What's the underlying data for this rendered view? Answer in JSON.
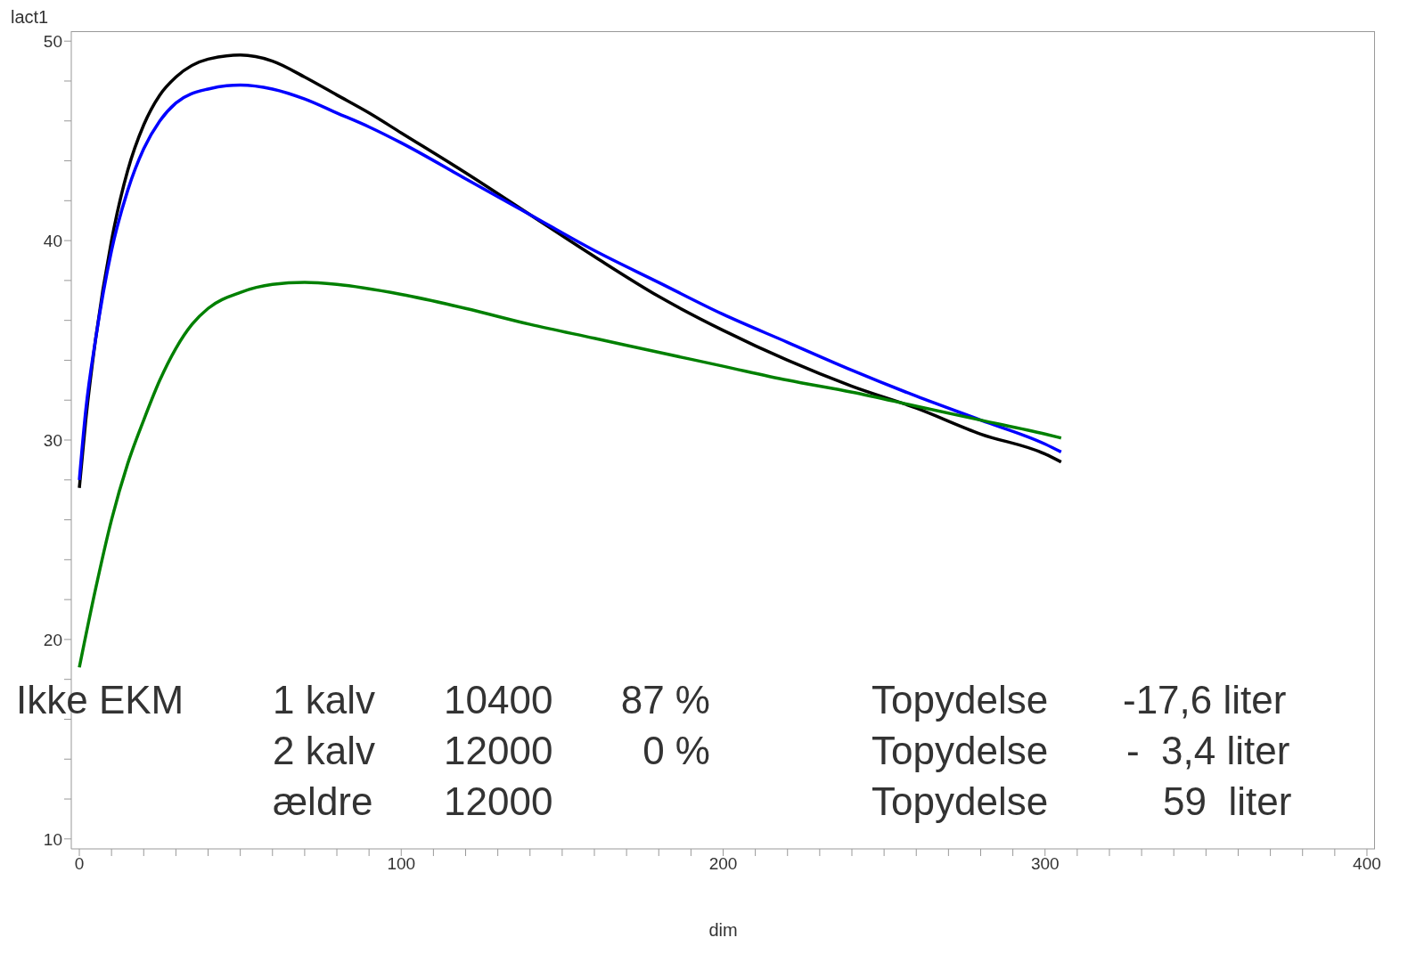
{
  "chart_data": {
    "type": "line",
    "xlabel": "dim",
    "ylabel": "lact1",
    "xlim": [
      -2.5,
      402.5
    ],
    "ylim": [
      9.5,
      50.5
    ],
    "xticks": [
      0,
      {
        "value": 10,
        "label": null
      },
      {
        "value": 20,
        "label": null
      },
      {
        "value": 30,
        "label": null
      },
      {
        "value": 40,
        "label": null
      },
      {
        "value": 50,
        "label": null
      },
      {
        "value": 60,
        "label": null
      },
      {
        "value": 70,
        "label": null
      },
      {
        "value": 80,
        "label": null
      },
      {
        "value": 90,
        "label": null
      },
      100,
      {
        "value": 110,
        "label": null
      },
      {
        "value": 120,
        "label": null
      },
      {
        "value": 130,
        "label": null
      },
      {
        "value": 140,
        "label": null
      },
      {
        "value": 150,
        "label": null
      },
      {
        "value": 160,
        "label": null
      },
      {
        "value": 170,
        "label": null
      },
      {
        "value": 180,
        "label": null
      },
      {
        "value": 190,
        "label": null
      },
      200,
      {
        "value": 210,
        "label": null
      },
      {
        "value": 220,
        "label": null
      },
      {
        "value": 230,
        "label": null
      },
      {
        "value": 240,
        "label": null
      },
      {
        "value": 250,
        "label": null
      },
      {
        "value": 260,
        "label": null
      },
      {
        "value": 270,
        "label": null
      },
      {
        "value": 280,
        "label": null
      },
      {
        "value": 290,
        "label": null
      },
      300,
      {
        "value": 310,
        "label": null
      },
      {
        "value": 320,
        "label": null
      },
      {
        "value": 330,
        "label": null
      },
      {
        "value": 340,
        "label": null
      },
      {
        "value": 350,
        "label": null
      },
      {
        "value": 360,
        "label": null
      },
      {
        "value": 370,
        "label": null
      },
      {
        "value": 380,
        "label": null
      },
      {
        "value": 390,
        "label": null
      },
      400
    ],
    "yticks": [
      10,
      {
        "value": 12,
        "label": null
      },
      {
        "value": 14,
        "label": null
      },
      {
        "value": 16,
        "label": null
      },
      {
        "value": 18,
        "label": null
      },
      20,
      {
        "value": 22,
        "label": null
      },
      {
        "value": 24,
        "label": null
      },
      {
        "value": 26,
        "label": null
      },
      {
        "value": 28,
        "label": null
      },
      30,
      {
        "value": 32,
        "label": null
      },
      {
        "value": 34,
        "label": null
      },
      {
        "value": 36,
        "label": null
      },
      {
        "value": 38,
        "label": null
      },
      40,
      {
        "value": 42,
        "label": null
      },
      {
        "value": 44,
        "label": null
      },
      {
        "value": 46,
        "label": null
      },
      {
        "value": 48,
        "label": null
      },
      50
    ],
    "marker": "none",
    "line_style": "solid",
    "series": [
      {
        "color": "#000000",
        "x": [
          0,
          2,
          5,
          10,
          15,
          20,
          25,
          30,
          40,
          50,
          60,
          70,
          80,
          90,
          100,
          120,
          140,
          160,
          180,
          200,
          220,
          240,
          260,
          280,
          300,
          305
        ],
        "values": [
          27.6,
          31,
          35,
          40,
          43.5,
          45.8,
          47.3,
          48.2,
          49.1,
          49.3,
          49,
          48.2,
          47.3,
          46.4,
          45.4,
          43.4,
          41.3,
          39.2,
          37.2,
          35.5,
          34,
          32.7,
          31.6,
          30.3,
          29.3,
          28.9
        ]
      },
      {
        "color": "#0000ff",
        "x": [
          0,
          2,
          5,
          10,
          15,
          20,
          25,
          30,
          40,
          50,
          60,
          70,
          80,
          90,
          100,
          120,
          140,
          160,
          180,
          200,
          220,
          240,
          260,
          280,
          300,
          305
        ],
        "values": [
          28,
          31.5,
          35,
          39.5,
          42.5,
          44.6,
          46,
          46.9,
          47.6,
          47.8,
          47.6,
          47.1,
          46.4,
          45.7,
          44.9,
          43.1,
          41.3,
          39.5,
          37.9,
          36.3,
          34.9,
          33.5,
          32.2,
          31,
          29.8,
          29.4
        ]
      },
      {
        "color": "#008000",
        "x": [
          0,
          5,
          10,
          15,
          20,
          25,
          30,
          35,
          40,
          50,
          60,
          70,
          80,
          100,
          120,
          140,
          160,
          180,
          200,
          220,
          240,
          260,
          280,
          300,
          305
        ],
        "values": [
          18.6,
          22.5,
          26,
          28.8,
          31,
          33,
          34.6,
          35.8,
          36.6,
          37.4,
          37.8,
          37.9,
          37.8,
          37.3,
          36.6,
          35.8,
          35.1,
          34.4,
          33.7,
          33,
          32.4,
          31.7,
          31,
          30.3,
          30.1
        ]
      }
    ],
    "annotations": [
      "Ikke EKM",
      "1 kalv",
      "10400",
      "87 %",
      "Topydelse",
      "-17,6 liter",
      "2 kalv",
      "12000",
      "0 %",
      "Topydelse",
      "-  3,4 liter",
      "ældre",
      "12000",
      "Topydelse",
      "59  liter"
    ]
  }
}
